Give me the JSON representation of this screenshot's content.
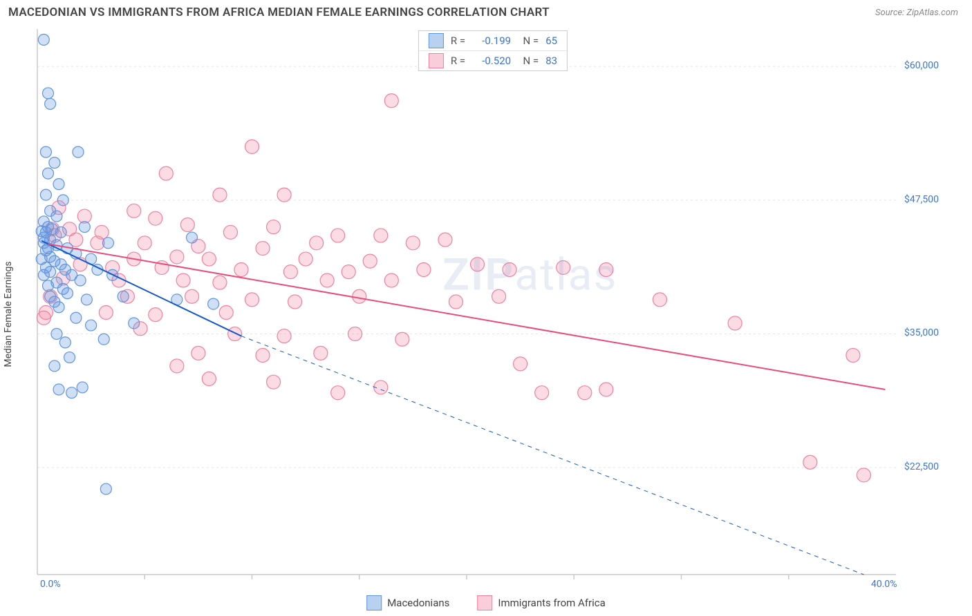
{
  "title": "MACEDONIAN VS IMMIGRANTS FROM AFRICA MEDIAN FEMALE EARNINGS CORRELATION CHART",
  "source": "Source: ZipAtlas.com",
  "watermark": {
    "bold": "ZIP",
    "rest": "atlas"
  },
  "chart": {
    "type": "scatter-with-regression",
    "background_color": "#ffffff",
    "grid_color": "#e5e5e5",
    "axis_color": "#c9c9c9",
    "y_axis_label": "Median Female Earnings",
    "x_min": 0.0,
    "x_max": 40.0,
    "y_min": 12500,
    "y_max": 63500,
    "x_ticks": [
      0.0,
      40.0
    ],
    "x_tick_labels": [
      "0.0%",
      "40.0%"
    ],
    "x_minor_ticks": [
      5,
      10,
      15,
      20,
      25,
      30,
      35
    ],
    "y_ticks": [
      22500,
      35000,
      47500,
      60000
    ],
    "y_tick_labels": [
      "$22,500",
      "$35,000",
      "$47,500",
      "$60,000"
    ],
    "series_a": {
      "name": "Macedonians",
      "color_fill": "rgba(96,148,222,0.30)",
      "color_stroke": "#6094de",
      "swatch_fill": "#b9d1f1",
      "swatch_stroke": "#6094de",
      "marker_radius": 8,
      "stats": {
        "R": "-0.199",
        "N": "65"
      },
      "regression": {
        "x1": 0.2,
        "y1": 43700,
        "x2": 9.5,
        "y2": 34800,
        "x2_dash": 38.5,
        "y2_dash": 12500,
        "color": "#1558c8",
        "width": 2
      },
      "points": [
        [
          0.3,
          62500
        ],
        [
          0.5,
          57500
        ],
        [
          0.6,
          56500
        ],
        [
          0.4,
          52000
        ],
        [
          0.8,
          51000
        ],
        [
          0.5,
          50000
        ],
        [
          1.9,
          52000
        ],
        [
          1.0,
          49000
        ],
        [
          0.4,
          48000
        ],
        [
          1.2,
          47500
        ],
        [
          0.6,
          46500
        ],
        [
          0.9,
          46000
        ],
        [
          0.3,
          45500
        ],
        [
          0.5,
          45000
        ],
        [
          0.7,
          44800
        ],
        [
          0.4,
          44500
        ],
        [
          1.1,
          44500
        ],
        [
          0.3,
          44000
        ],
        [
          0.6,
          43800
        ],
        [
          0.2,
          44600
        ],
        [
          0.3,
          43500
        ],
        [
          0.9,
          43300
        ],
        [
          0.5,
          43000
        ],
        [
          1.4,
          43000
        ],
        [
          0.4,
          42800
        ],
        [
          1.8,
          42500
        ],
        [
          0.6,
          42200
        ],
        [
          0.2,
          42000
        ],
        [
          0.8,
          41800
        ],
        [
          1.1,
          41500
        ],
        [
          2.2,
          45000
        ],
        [
          2.5,
          42000
        ],
        [
          3.3,
          43500
        ],
        [
          0.4,
          41200
        ],
        [
          1.3,
          41000
        ],
        [
          0.6,
          40800
        ],
        [
          0.3,
          40500
        ],
        [
          1.6,
          40500
        ],
        [
          2.0,
          40000
        ],
        [
          0.9,
          39800
        ],
        [
          0.5,
          39500
        ],
        [
          1.2,
          39200
        ],
        [
          2.8,
          41000
        ],
        [
          3.5,
          40500
        ],
        [
          7.2,
          44000
        ],
        [
          1.4,
          38800
        ],
        [
          0.6,
          38500
        ],
        [
          2.3,
          38200
        ],
        [
          0.8,
          38000
        ],
        [
          1.0,
          37500
        ],
        [
          4.0,
          38500
        ],
        [
          4.5,
          36000
        ],
        [
          1.8,
          36500
        ],
        [
          2.5,
          35800
        ],
        [
          0.9,
          35000
        ],
        [
          1.3,
          34200
        ],
        [
          3.1,
          34500
        ],
        [
          6.5,
          38200
        ],
        [
          8.2,
          37800
        ],
        [
          1.5,
          32800
        ],
        [
          0.8,
          32000
        ],
        [
          2.1,
          30000
        ],
        [
          1.0,
          29800
        ],
        [
          1.6,
          29500
        ],
        [
          3.2,
          20500
        ]
      ]
    },
    "series_b": {
      "name": "Immigrants from Africa",
      "color_fill": "rgba(241,128,158,0.28)",
      "color_stroke": "#f1809e",
      "swatch_fill": "#f9cdd9",
      "swatch_stroke": "#f1809e",
      "marker_radius": 10,
      "stats": {
        "R": "-0.520",
        "N": "83"
      },
      "regression": {
        "x1": 0.5,
        "y1": 43400,
        "x2": 39.5,
        "y2": 29800,
        "color": "#e94b7b",
        "width": 2
      },
      "points": [
        [
          16.5,
          56800
        ],
        [
          10.0,
          52500
        ],
        [
          6.0,
          50000
        ],
        [
          8.5,
          48000
        ],
        [
          11.5,
          48000
        ],
        [
          1.0,
          46800
        ],
        [
          2.2,
          46000
        ],
        [
          4.5,
          46500
        ],
        [
          5.5,
          45800
        ],
        [
          7.0,
          45200
        ],
        [
          1.5,
          44800
        ],
        [
          3.0,
          44500
        ],
        [
          9.0,
          44500
        ],
        [
          11.0,
          45000
        ],
        [
          14.0,
          44200
        ],
        [
          16.0,
          44200
        ],
        [
          1.8,
          43800
        ],
        [
          0.8,
          44200
        ],
        [
          2.8,
          43500
        ],
        [
          5.0,
          43500
        ],
        [
          7.5,
          43200
        ],
        [
          10.5,
          43000
        ],
        [
          13.0,
          43500
        ],
        [
          17.5,
          43500
        ],
        [
          19.0,
          43800
        ],
        [
          4.5,
          42000
        ],
        [
          6.5,
          42200
        ],
        [
          8.0,
          42000
        ],
        [
          12.5,
          42000
        ],
        [
          15.5,
          41800
        ],
        [
          2.0,
          41500
        ],
        [
          0.7,
          44800
        ],
        [
          3.5,
          41200
        ],
        [
          5.8,
          41200
        ],
        [
          9.5,
          41000
        ],
        [
          11.8,
          40800
        ],
        [
          14.5,
          40800
        ],
        [
          18.0,
          41000
        ],
        [
          20.5,
          41500
        ],
        [
          3.8,
          40000
        ],
        [
          1.2,
          40200
        ],
        [
          6.8,
          40000
        ],
        [
          8.5,
          39800
        ],
        [
          13.5,
          40000
        ],
        [
          16.5,
          40000
        ],
        [
          22.0,
          41000
        ],
        [
          24.5,
          41200
        ],
        [
          4.2,
          38500
        ],
        [
          7.2,
          38500
        ],
        [
          10.0,
          38200
        ],
        [
          0.6,
          38500
        ],
        [
          12.0,
          38000
        ],
        [
          15.0,
          38500
        ],
        [
          19.5,
          38000
        ],
        [
          3.2,
          37000
        ],
        [
          0.4,
          37000
        ],
        [
          5.5,
          36800
        ],
        [
          8.8,
          37000
        ],
        [
          21.5,
          38500
        ],
        [
          26.5,
          41000
        ],
        [
          29.0,
          38200
        ],
        [
          4.8,
          35500
        ],
        [
          9.2,
          35000
        ],
        [
          11.5,
          34800
        ],
        [
          0.3,
          36500
        ],
        [
          14.8,
          35000
        ],
        [
          17.0,
          34500
        ],
        [
          7.5,
          33200
        ],
        [
          10.5,
          33000
        ],
        [
          32.5,
          36000
        ],
        [
          13.2,
          33200
        ],
        [
          6.5,
          32000
        ],
        [
          22.5,
          32200
        ],
        [
          38.0,
          33000
        ],
        [
          8.0,
          30800
        ],
        [
          11.0,
          30500
        ],
        [
          16.0,
          30000
        ],
        [
          14.0,
          29500
        ],
        [
          23.5,
          29500
        ],
        [
          25.5,
          29500
        ],
        [
          26.5,
          29800
        ],
        [
          36.0,
          23000
        ],
        [
          38.5,
          21800
        ]
      ]
    }
  },
  "bottom_legend": {
    "a": "Macedonians",
    "b": "Immigrants from Africa"
  }
}
